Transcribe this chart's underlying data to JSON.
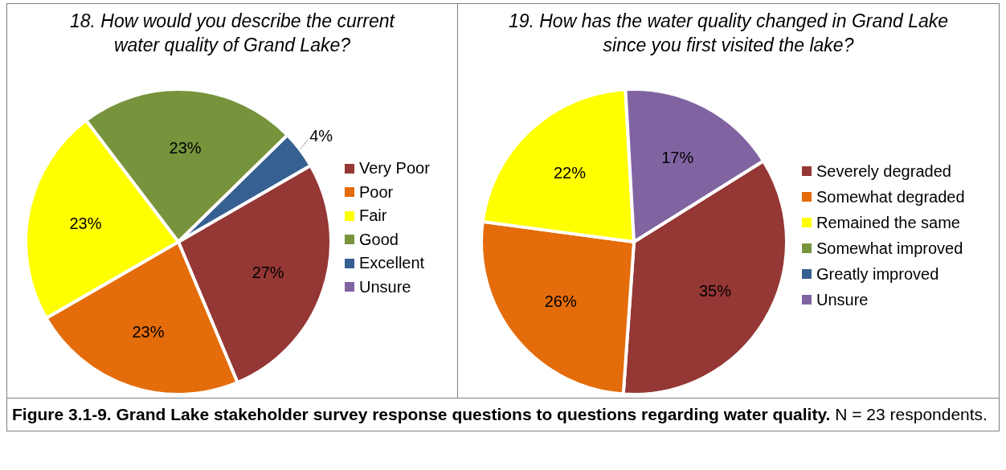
{
  "chart_data": [
    {
      "type": "pie",
      "title": "18. How would you describe the current water quality of Grand Lake?",
      "categories": [
        "Very Poor",
        "Poor",
        "Fair",
        "Good",
        "Excellent",
        "Unsure"
      ],
      "values": [
        27,
        23,
        23,
        23,
        4,
        0
      ],
      "colors": [
        "#953735",
        "#e46c0a",
        "#ffff00",
        "#77933c",
        "#376092",
        "#8064a2"
      ],
      "value_labels": [
        "27%",
        "23%",
        "23%",
        "23%",
        "4%",
        null
      ],
      "legend": "right"
    },
    {
      "type": "pie",
      "title": "19. How has the water quality changed in Grand Lake since you first visited the lake?",
      "categories": [
        "Severely degraded",
        "Somewhat degraded",
        "Remained the same",
        "Somewhat improved",
        "Greatly improved",
        "Unsure"
      ],
      "values": [
        35,
        26,
        22,
        0,
        0,
        17
      ],
      "colors": [
        "#953735",
        "#e46c0a",
        "#ffff00",
        "#77933c",
        "#376092",
        "#8064a2"
      ],
      "value_labels": [
        "35%",
        "26%",
        "22%",
        null,
        null,
        "17%"
      ],
      "legend": "right",
      "annotations": [
        "Figure 3.1-9.  Grand Lake stakeholder survey response questions to questions regarding water quality.",
        "N = 23 respondents."
      ]
    }
  ]
}
